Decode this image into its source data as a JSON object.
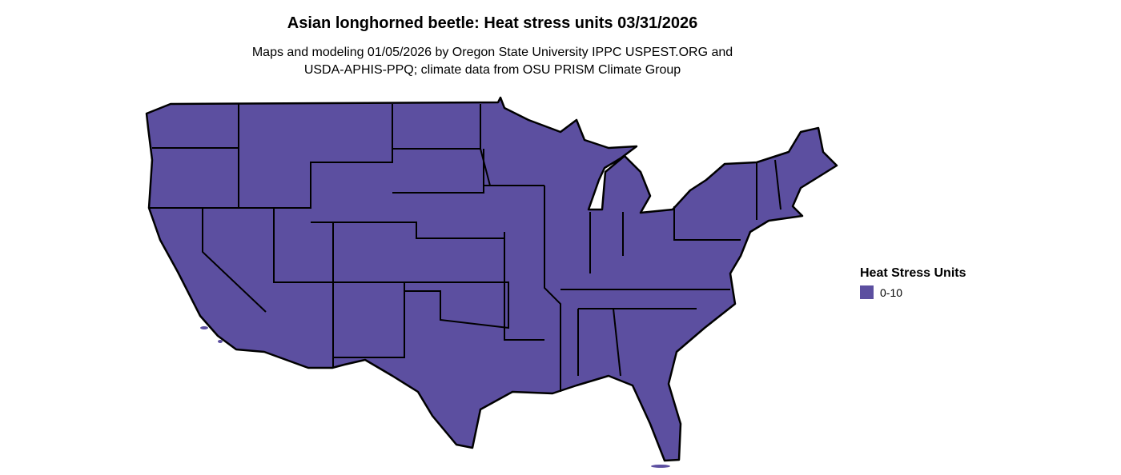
{
  "title": "Asian longhorned beetle: Heat stress units 03/31/2026",
  "subtitle_line1": "Maps and modeling 01/05/2026 by Oregon State University IPPC USPEST.ORG and",
  "subtitle_line2": "USDA-APHIS-PPQ; climate data from OSU PRISM Climate Group",
  "map": {
    "region": "Contiguous United States",
    "fill_color": "#5c4fa0",
    "border_color": "#000000"
  },
  "legend": {
    "title": "Heat Stress Units",
    "items": [
      {
        "label": "0-10",
        "color": "#5c4fa0"
      }
    ]
  }
}
